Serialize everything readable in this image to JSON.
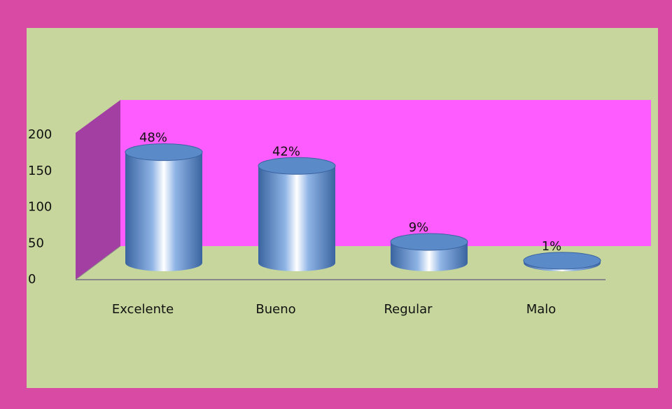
{
  "chart_data": {
    "type": "bar3d",
    "categories": [
      "Excelente",
      "Bueno",
      "Regular",
      "Malo"
    ],
    "values": [
      153,
      134,
      29,
      3
    ],
    "value_labels": [
      "48%",
      "42%",
      "9%",
      "1%"
    ],
    "color": "#5b8ac8",
    "ylim": [
      0,
      200
    ],
    "yticks": [
      0,
      50,
      100,
      150,
      200
    ]
  }
}
